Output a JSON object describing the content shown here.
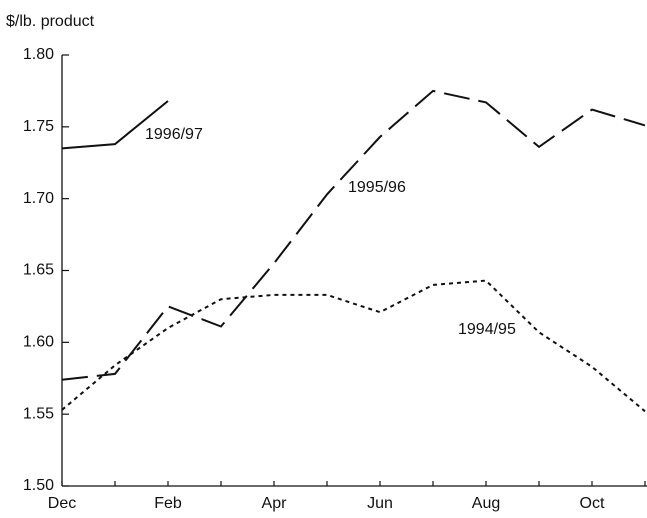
{
  "chart_data": {
    "type": "line",
    "y_axis_label": "$/lb. product",
    "categories": [
      "Dec",
      null,
      "Feb",
      null,
      "Apr",
      null,
      "Jun",
      null,
      "Aug",
      null,
      "Oct",
      null
    ],
    "series": [
      {
        "name": "1996/97",
        "color": "#111111",
        "style": "solid",
        "values": [
          1.735,
          1.738,
          1.768,
          null,
          null,
          null,
          null,
          null,
          null,
          null,
          null,
          null
        ]
      },
      {
        "name": "1995/96",
        "color": "#111111",
        "style": "dashed",
        "values": [
          1.574,
          1.578,
          1.625,
          1.611,
          1.655,
          1.703,
          1.743,
          1.775,
          1.767,
          1.736,
          1.762,
          1.751
        ]
      },
      {
        "name": "1994/95",
        "color": "#111111",
        "style": "dotted",
        "values": [
          1.553,
          1.584,
          1.61,
          1.63,
          1.633,
          1.633,
          1.621,
          1.64,
          1.643,
          1.607,
          1.583,
          1.552
        ]
      }
    ],
    "ylim": [
      1.5,
      1.8
    ],
    "yticks": [
      {
        "value": 1.5,
        "label": "1.50"
      },
      1.55,
      {
        "value": 1.6,
        "label": "1.60"
      },
      1.65,
      {
        "value": 1.7,
        "label": "1.70"
      },
      1.75,
      {
        "value": 1.8,
        "label": "1.80"
      }
    ],
    "grid": false
  }
}
